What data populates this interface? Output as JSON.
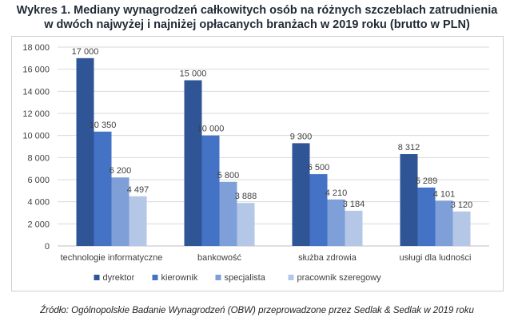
{
  "title_line1": "Wykres 1. Mediany wynagrodzeń całkowitych osób na różnych szczeblach zatrudnienia",
  "title_line2": "w dwóch najwyżej i najniżej opłacanych branżach w 2019 roku (brutto w PLN)",
  "source": "Źródło: Ogólnopolskie Badanie Wynagrodzeń (OBW) przeprowadzone przez Sedlak & Sedlak w 2019 roku",
  "chart_data": {
    "type": "bar",
    "categories": [
      "technologie informatyczne",
      "bankowość",
      "służba zdrowia",
      "usługi dla ludności"
    ],
    "series": [
      {
        "name": "dyrektor",
        "color": "#2f5597",
        "values": [
          17000,
          15000,
          9300,
          8312
        ],
        "labels": [
          "17 000",
          "15 000",
          "9 300",
          "8 312"
        ]
      },
      {
        "name": "kierownik",
        "color": "#4472c4",
        "values": [
          10350,
          10000,
          6500,
          5289
        ],
        "labels": [
          "10 350",
          "10 000",
          "6 500",
          "5 289"
        ]
      },
      {
        "name": "specjalista",
        "color": "#7f9fd8",
        "values": [
          6200,
          5800,
          4210,
          4101
        ],
        "labels": [
          "6 200",
          "5 800",
          "4 210",
          "4 101"
        ]
      },
      {
        "name": "pracownik szeregowy",
        "color": "#b4c7e7",
        "values": [
          4497,
          3888,
          3184,
          3120
        ],
        "labels": [
          "4 497",
          "3 888",
          "3 184",
          "3 120"
        ]
      }
    ],
    "ylim": [
      0,
      18000
    ],
    "yticks": [
      0,
      2000,
      4000,
      6000,
      8000,
      10000,
      12000,
      14000,
      16000,
      18000
    ],
    "ytick_labels": [
      "0",
      "2 000",
      "4 000",
      "6 000",
      "8 000",
      "10 000",
      "12 000",
      "14 000",
      "16 000",
      "18 000"
    ],
    "grid": true,
    "legend_position": "bottom"
  }
}
